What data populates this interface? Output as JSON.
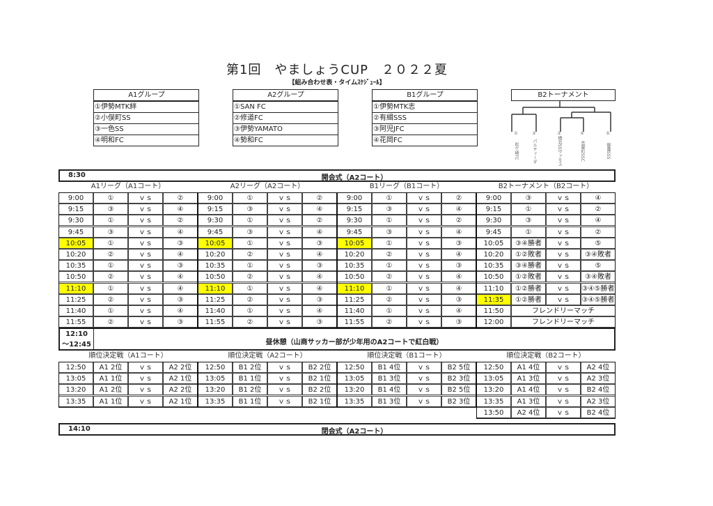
{
  "title": "第1回　やましょうCUP　２０２２夏",
  "subtitle": "【組み合わせ表・タイムｽｹｼﾞｭｰﾙ】",
  "groups": [
    {
      "name": "A1グループ",
      "teams": [
        "①伊勢MTK絆",
        "②小俣町SS",
        "③一色SS",
        "④明和FC"
      ]
    },
    {
      "name": "A2グループ",
      "teams": [
        "①SAN FC",
        "②修道FC",
        "③伊勢YAMATO",
        "④勢和FC"
      ]
    },
    {
      "name": "B1グループ",
      "teams": [
        "①伊勢MTK志",
        "②有緝SSS",
        "③阿児JFC",
        "④花岡FC"
      ]
    }
  ],
  "b2_tournament": {
    "title": "B2トーナメント",
    "teams": [
      {
        "num": "①",
        "name": "松ケ崎FC"
      },
      {
        "num": "②",
        "name": "パルティーダ"
      },
      {
        "num": "③",
        "name": "橋北SSヴァモス"
      },
      {
        "num": "④",
        "name": "志摩町SSC"
      },
      {
        "num": "⑤",
        "name": "御薗SSS"
      }
    ]
  },
  "opening": {
    "time": "8:30",
    "label": "開会式（A2コート）"
  },
  "league_headers": [
    "A1リーグ（A1コート）",
    "A2リーグ（A2コート）",
    "B1リーグ（B1コート）",
    "B2トーナメント（B2コート）"
  ],
  "highlight_color": "#ffff00",
  "league_blocks": [
    {
      "rows": [
        [
          "9:00",
          "①",
          "ｖｓ",
          "②"
        ],
        [
          "9:15",
          "③",
          "ｖｓ",
          "④"
        ],
        [
          "9:30",
          "①",
          "ｖｓ",
          "②"
        ],
        [
          "9:45",
          "③",
          "ｖｓ",
          "④"
        ],
        [
          "10:05",
          "①",
          "ｖｓ",
          "③"
        ],
        [
          "10:20",
          "②",
          "ｖｓ",
          "④"
        ],
        [
          "10:35",
          "①",
          "ｖｓ",
          "③"
        ],
        [
          "10:50",
          "②",
          "ｖｓ",
          "④"
        ],
        [
          "11:10",
          "①",
          "ｖｓ",
          "④"
        ],
        [
          "11:25",
          "②",
          "ｖｓ",
          "③"
        ],
        [
          "11:40",
          "①",
          "ｖｓ",
          "④"
        ],
        [
          "11:55",
          "②",
          "ｖｓ",
          "③"
        ]
      ],
      "highlighted": [
        "10:05",
        "11:10"
      ]
    },
    {
      "rows": [
        [
          "9:00",
          "①",
          "ｖｓ",
          "②"
        ],
        [
          "9:15",
          "③",
          "ｖｓ",
          "④"
        ],
        [
          "9:30",
          "①",
          "ｖｓ",
          "②"
        ],
        [
          "9:45",
          "③",
          "ｖｓ",
          "④"
        ],
        [
          "10:05",
          "①",
          "ｖｓ",
          "③"
        ],
        [
          "10:20",
          "②",
          "ｖｓ",
          "④"
        ],
        [
          "10:35",
          "①",
          "ｖｓ",
          "③"
        ],
        [
          "10:50",
          "②",
          "ｖｓ",
          "④"
        ],
        [
          "11:10",
          "①",
          "ｖｓ",
          "④"
        ],
        [
          "11:25",
          "②",
          "ｖｓ",
          "③"
        ],
        [
          "11:40",
          "①",
          "ｖｓ",
          "④"
        ],
        [
          "11:55",
          "②",
          "ｖｓ",
          "③"
        ]
      ],
      "highlighted": [
        "10:05",
        "11:10"
      ]
    },
    {
      "rows": [
        [
          "9:00",
          "①",
          "ｖｓ",
          "②"
        ],
        [
          "9:15",
          "③",
          "ｖｓ",
          "④"
        ],
        [
          "9:30",
          "①",
          "ｖｓ",
          "②"
        ],
        [
          "9:45",
          "③",
          "ｖｓ",
          "④"
        ],
        [
          "10:05",
          "①",
          "ｖｓ",
          "③"
        ],
        [
          "10:20",
          "②",
          "ｖｓ",
          "④"
        ],
        [
          "10:35",
          "①",
          "ｖｓ",
          "③"
        ],
        [
          "10:50",
          "②",
          "ｖｓ",
          "④"
        ],
        [
          "11:10",
          "①",
          "ｖｓ",
          "④"
        ],
        [
          "11:25",
          "②",
          "ｖｓ",
          "③"
        ],
        [
          "11:40",
          "①",
          "ｖｓ",
          "④"
        ],
        [
          "11:55",
          "②",
          "ｖｓ",
          "③"
        ]
      ],
      "highlighted": [
        "10:05",
        "11:10"
      ]
    },
    {
      "rows": [
        [
          "9:00",
          "③",
          "ｖｓ",
          "④"
        ],
        [
          "9:15",
          "①",
          "ｖｓ",
          "②"
        ],
        [
          "9:30",
          "③",
          "ｖｓ",
          "④"
        ],
        [
          "9:45",
          "①",
          "ｖｓ",
          "②"
        ],
        [
          "10:05",
          "③④勝者",
          "ｖｓ",
          "⑤"
        ],
        [
          "10:20",
          "①②敗者",
          "ｖｓ",
          "③④敗者"
        ],
        [
          "10:35",
          "③④勝者",
          "ｖｓ",
          "⑤"
        ],
        [
          "10:50",
          "①②敗者",
          "ｖｓ",
          "③④敗者"
        ],
        [
          "11:10",
          "①②勝者",
          "ｖｓ",
          "③④⑤勝者"
        ],
        [
          "11:35",
          "①②勝者",
          "ｖｓ",
          "③④⑤勝者"
        ],
        [
          "11:50",
          "フレンドリーマッチ"
        ],
        [
          "12:00",
          "フレンドリーマッチ"
        ]
      ],
      "highlighted": [
        "11:35"
      ]
    }
  ],
  "lunch": {
    "time_start": "12:10",
    "time_end": "～12:45",
    "label": "昼休憩（山商サッカー部が少年用のA2コートで紅白戦）"
  },
  "ranking_headers": [
    "順位決定戦（A1コート）",
    "順位決定戦（A2コート）",
    "順位決定戦（B1コート）",
    "順位決定戦（B2コート）"
  ],
  "ranking_blocks": [
    [
      [
        "12:50",
        "A1 2位",
        "ｖｓ",
        "A2 2位"
      ],
      [
        "13:05",
        "A1 1位",
        "ｖｓ",
        "A2 1位"
      ],
      [
        "13:20",
        "A1 2位",
        "ｖｓ",
        "A2 2位"
      ],
      [
        "13:35",
        "A1 1位",
        "ｖｓ",
        "A2 1位"
      ]
    ],
    [
      [
        "12:50",
        "B1 2位",
        "ｖｓ",
        "B2 2位"
      ],
      [
        "13:05",
        "B1 1位",
        "ｖｓ",
        "B2 1位"
      ],
      [
        "13:20",
        "B1 2位",
        "ｖｓ",
        "B2 2位"
      ],
      [
        "13:35",
        "B1 1位",
        "ｖｓ",
        "B2 1位"
      ]
    ],
    [
      [
        "12:50",
        "B1 4位",
        "ｖｓ",
        "B2 5位"
      ],
      [
        "13:05",
        "B1 3位",
        "ｖｓ",
        "B2 3位"
      ],
      [
        "13:20",
        "B1 4位",
        "ｖｓ",
        "B2 5位"
      ],
      [
        "13:35",
        "B1 3位",
        "ｖｓ",
        "B2 3位"
      ]
    ],
    [
      [
        "12:50",
        "A1 4位",
        "ｖｓ",
        "A2 4位"
      ],
      [
        "13:05",
        "A1 3位",
        "ｖｓ",
        "A2 3位"
      ],
      [
        "13:20",
        "A1 4位",
        "ｖｓ",
        "B2 4位"
      ],
      [
        "13:35",
        "A1 3位",
        "ｖｓ",
        "A2 3位"
      ],
      [
        "13:50",
        "A2 4位",
        "ｖｓ",
        "B2 4位"
      ]
    ]
  ],
  "closing": {
    "time": "14:10",
    "label": "閉会式（A2コート）"
  }
}
